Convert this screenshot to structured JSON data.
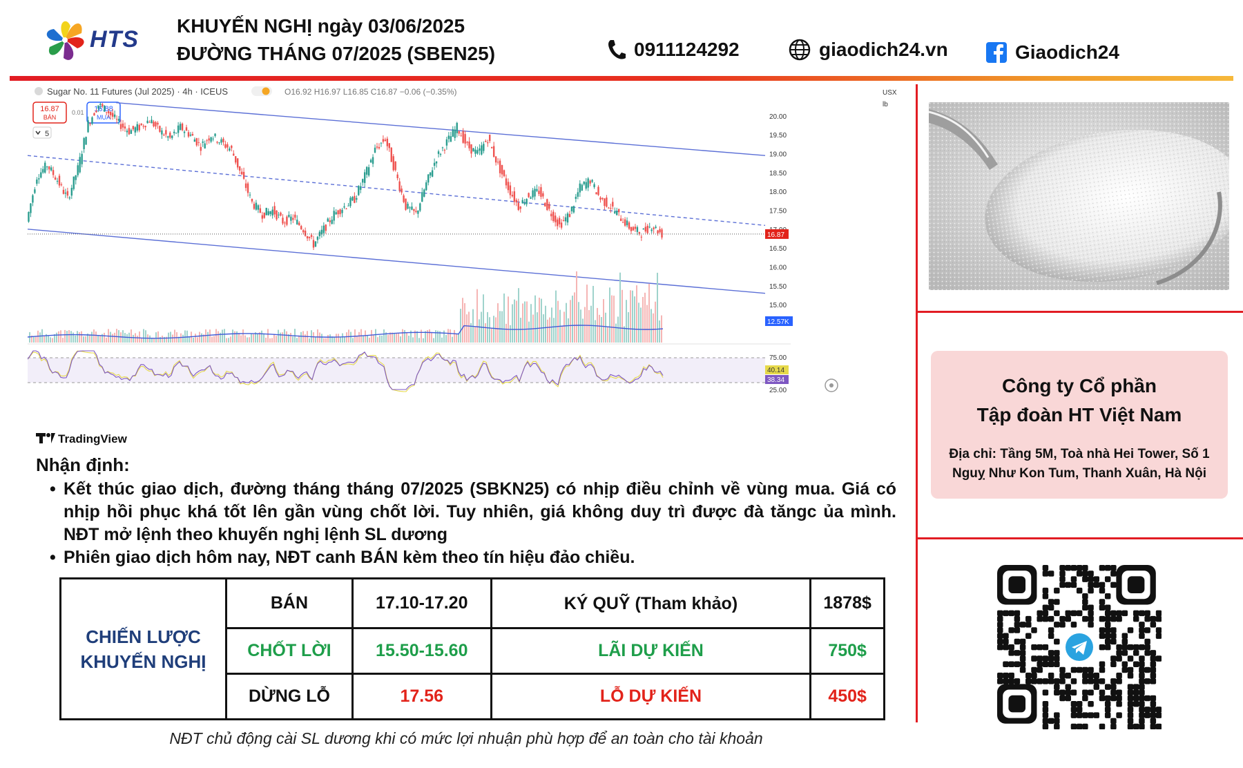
{
  "header": {
    "brand": "HTS",
    "title_line1": "KHUYẾN NGHỊ ngày 03/06/2025",
    "title_line2": "ĐƯỜNG THÁNG 07/2025 (SBEN25)",
    "phone": "0911124292",
    "website": "giaodich24.vn",
    "facebook": "Giaodich24",
    "icons": [
      "phone-icon",
      "globe-icon",
      "facebook-icon"
    ]
  },
  "chart_data": {
    "type": "line",
    "title": "Sugar No. 11 Futures (Jul 2025) · 4h · ICEUS",
    "ohlc_text": "O16.92 H16.97 L16.85 C16.87 −0.06 (−0.35%)",
    "sell_price": "16.87",
    "sell_label": "BÁN",
    "spread": "0.01",
    "buy_price": "16.88",
    "buy_label": "MUA",
    "indicator_count": "5",
    "currency": "USX",
    "unit": "lb",
    "y_ticks": [
      "20.00",
      "19.50",
      "19.00",
      "18.50",
      "18.00",
      "17.50",
      "17.00",
      "16.50",
      "16.00",
      "15.50",
      "15.00"
    ],
    "ylim": [
      14.8,
      20.4
    ],
    "last_price": "16.87",
    "volume_label": "12.57K",
    "rsi_ticks": [
      "75.00",
      "25.00"
    ],
    "rsi_values": [
      "40.14",
      "38.34"
    ],
    "series": [
      {
        "values": [
          17.2,
          18.4,
          18.7,
          18.3,
          17.8,
          18.6,
          19.8,
          20.3,
          20.1,
          19.8,
          19.6,
          19.7,
          19.9,
          19.6,
          19.4,
          19.7,
          19.5,
          19.2,
          19.5,
          19.3,
          19.1,
          18.4,
          17.7,
          17.4,
          17.5,
          17.2,
          17.3,
          17.0,
          16.6,
          17.0,
          17.4,
          17.6,
          17.8,
          18.4,
          19.1,
          19.4,
          18.5,
          17.6,
          17.4,
          18.2,
          18.9,
          19.3,
          19.7,
          19.2,
          19.0,
          19.4,
          18.7,
          18.1,
          17.6,
          17.9,
          18.0,
          17.5,
          17.1,
          17.4,
          18.1,
          18.3,
          17.8,
          17.6,
          17.3,
          17.0,
          16.9,
          17.1,
          16.87
        ]
      }
    ],
    "trendlines": [
      {
        "label": "upper",
        "from": [
          0.12,
          20.35
        ],
        "to": [
          1.0,
          18.95
        ]
      },
      {
        "label": "middle",
        "from": [
          0.0,
          18.95
        ],
        "to": [
          1.0,
          17.1
        ]
      },
      {
        "label": "lower",
        "from": [
          0.0,
          17.0
        ],
        "to": [
          1.0,
          15.3
        ]
      }
    ],
    "watermark": "TradingView"
  },
  "analysis": {
    "title": "Nhận định:",
    "bullets": [
      "Kết thúc giao dịch, đường tháng tháng 07/2025 (SBKN25) có nhịp điều chỉnh về vùng mua. Giá có nhịp hồi phục khá tốt lên gần vùng chốt lời. Tuy nhiên, giá không duy trì được đà tăngc ủa mình. NĐT mở lệnh theo khuyến nghị lệnh SL dương",
      "Phiên giao dịch hôm nay, NĐT canh BÁN kèm theo tín hiệu đảo chiều."
    ]
  },
  "strategy": {
    "header": "CHIẾN LƯỢC KHUYẾN NGHỊ",
    "rows": [
      [
        "BÁN",
        "17.10-17.20",
        "KÝ QUỸ (Tham khảo)",
        "1878$"
      ],
      [
        "CHỐT LỜI",
        "15.50-15.60",
        "LÃI DỰ KIẾN",
        "750$"
      ],
      [
        "DỪNG LỖ",
        "17.56",
        "LỖ DỰ KIẾN",
        "450$"
      ]
    ],
    "colors": {
      "header": "#1f3e7a",
      "profit": "#1e9e4a",
      "loss": "#e2231a"
    }
  },
  "company": {
    "name_line1": "Công ty Cổ phần",
    "name_line2": "Tập đoàn HT Việt Nam",
    "address_line1": "Địa chỉ: Tầng 5M, Toà nhà Hei Tower, Số 1",
    "address_line2": "Nguỵ Như Kon Tum, Thanh Xuân, Hà Nội"
  },
  "footer_note": "NĐT chủ động cài SL dương khi có mức lợi nhuận phù hợp để an toàn cho tài khoản",
  "colors": {
    "brand_red": "#e21c23",
    "brand_blue": "#233a8b",
    "chart_line": "#3f5bd8"
  }
}
